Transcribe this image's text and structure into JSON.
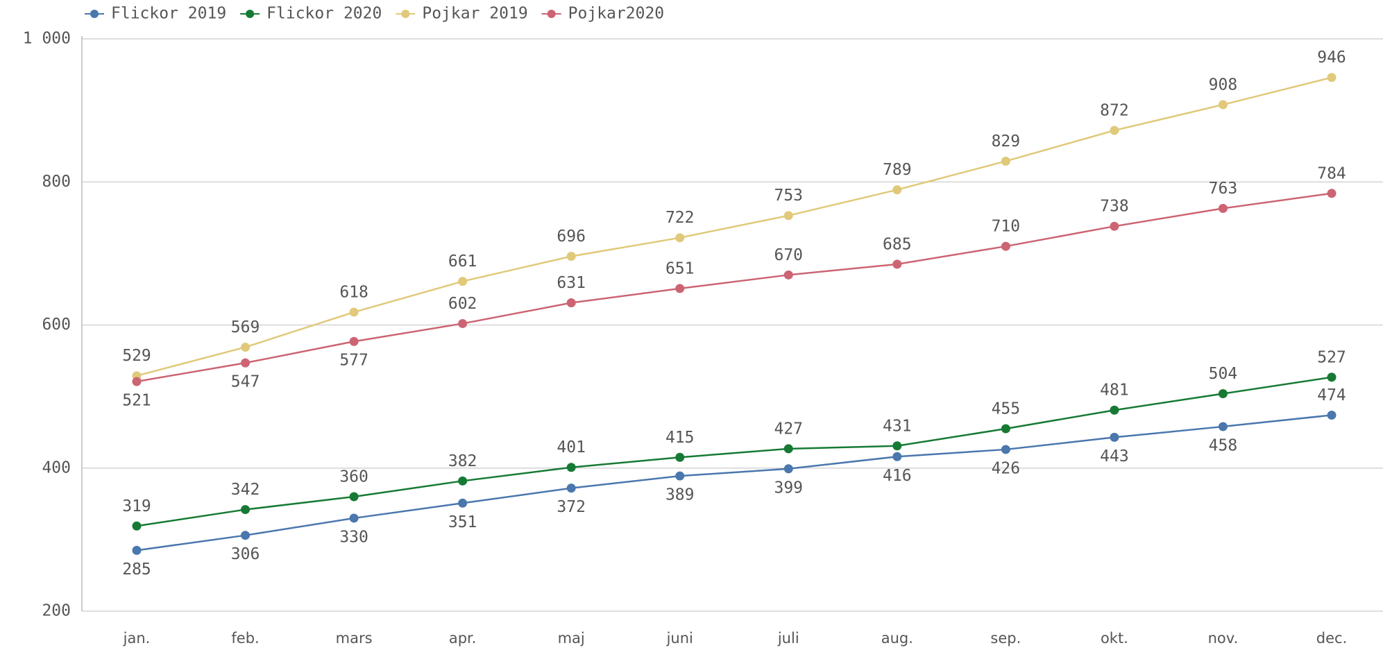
{
  "chart_data": {
    "type": "line",
    "categories": [
      "jan.",
      "feb.",
      "mars",
      "apr.",
      "maj",
      "juni",
      "juli",
      "aug.",
      "sep.",
      "okt.",
      "nov.",
      "dec."
    ],
    "series": [
      {
        "name": "Flickor 2019",
        "color": "#4a77ad",
        "values": [
          285,
          306,
          330,
          351,
          372,
          389,
          399,
          416,
          426,
          443,
          458,
          474
        ]
      },
      {
        "name": "Flickor 2020",
        "color": "#167a34",
        "values": [
          319,
          342,
          360,
          382,
          401,
          415,
          427,
          431,
          455,
          481,
          504,
          527
        ]
      },
      {
        "name": "Pojkar 2019",
        "color": "#e0c97a",
        "values": [
          529,
          569,
          618,
          661,
          696,
          722,
          753,
          789,
          829,
          872,
          908,
          946
        ]
      },
      {
        "name": "Pojkar2020",
        "color": "#cc6473",
        "values": [
          521,
          547,
          577,
          602,
          631,
          651,
          670,
          685,
          710,
          738,
          763,
          784
        ]
      }
    ],
    "ylim": [
      200,
      1000
    ],
    "yticks": [
      200,
      400,
      600,
      800,
      {
        "value": 1000,
        "label": "1 000"
      }
    ],
    "grid": true,
    "legend": "top"
  }
}
